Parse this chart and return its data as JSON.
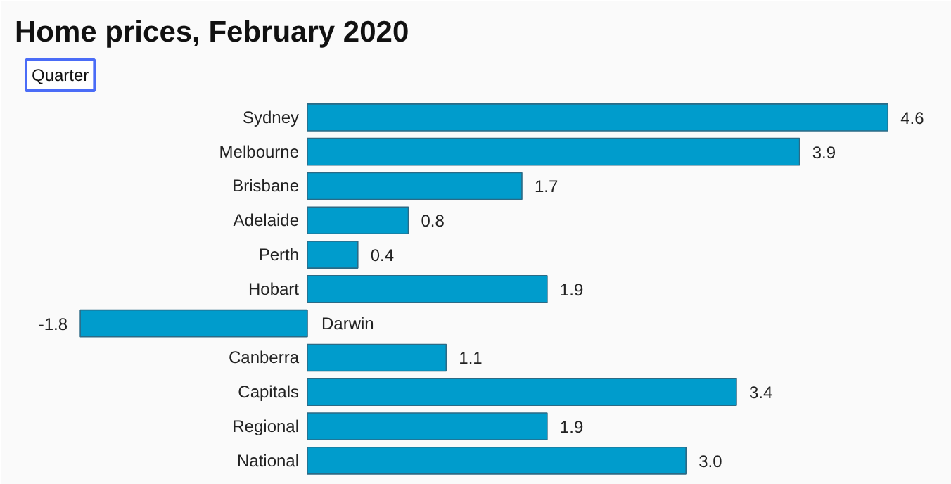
{
  "chart_data": {
    "type": "bar",
    "orientation": "horizontal",
    "title": "Home prices, February 2020",
    "subtitle": "Quarter",
    "color": "#009ccc",
    "categories": [
      "Sydney",
      "Melbourne",
      "Brisbane",
      "Adelaide",
      "Perth",
      "Hobart",
      "Darwin",
      "Canberra",
      "Capitals",
      "Regional",
      "National"
    ],
    "values": [
      4.6,
      3.9,
      1.7,
      0.8,
      0.4,
      1.9,
      -1.8,
      1.1,
      3.4,
      1.9,
      3.0
    ],
    "value_labels": [
      "4.6",
      "3.9",
      "1.7",
      "0.8",
      "0.4",
      "1.9",
      "-1.8",
      "1.1",
      "3.4",
      "1.9",
      "3.0"
    ]
  }
}
